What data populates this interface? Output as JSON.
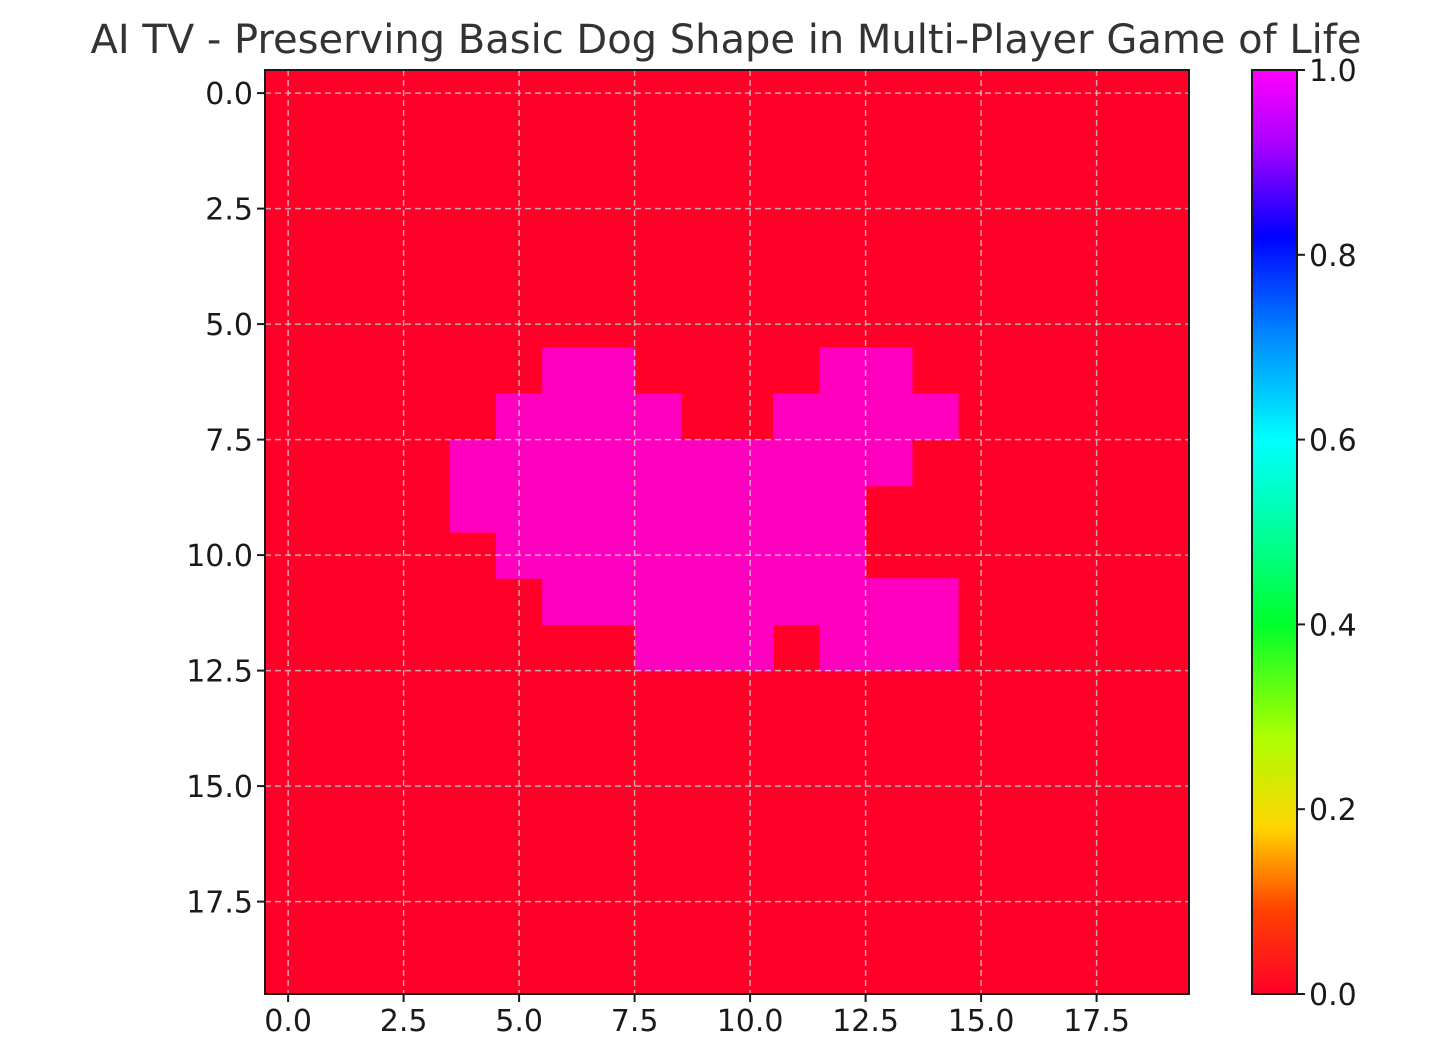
{
  "chart_data": {
    "type": "heatmap",
    "title": "AI TV - Preserving Basic Dog Shape in Multi-Player Game of Life",
    "xlabel": "",
    "ylabel": "",
    "grid_size": [
      20,
      20
    ],
    "xlim": [
      -0.5,
      19.5
    ],
    "ylim": [
      19.5,
      -0.5
    ],
    "x_ticks": [
      "0.0",
      "2.5",
      "5.0",
      "7.5",
      "10.0",
      "12.5",
      "15.0",
      "17.5"
    ],
    "y_ticks": [
      "0.0",
      "2.5",
      "5.0",
      "7.5",
      "10.0",
      "12.5",
      "15.0",
      "17.5"
    ],
    "grid": true,
    "colormap": "gist_rainbow",
    "colorbar": {
      "min": 0.0,
      "max": 1.0,
      "ticks": [
        "0.0",
        "0.2",
        "0.4",
        "0.6",
        "0.8",
        "1.0"
      ]
    },
    "background_value": 0,
    "cells_value_1": [
      [
        6,
        6
      ],
      [
        6,
        7
      ],
      [
        7,
        5
      ],
      [
        7,
        6
      ],
      [
        7,
        7
      ],
      [
        7,
        8
      ],
      [
        8,
        4
      ],
      [
        8,
        5
      ],
      [
        8,
        6
      ],
      [
        8,
        7
      ],
      [
        8,
        8
      ],
      [
        8,
        9
      ],
      [
        8,
        10
      ],
      [
        8,
        11
      ],
      [
        8,
        12
      ],
      [
        8,
        13
      ],
      [
        9,
        4
      ],
      [
        9,
        5
      ],
      [
        9,
        6
      ],
      [
        9,
        7
      ],
      [
        9,
        8
      ],
      [
        9,
        9
      ],
      [
        9,
        10
      ],
      [
        9,
        11
      ],
      [
        9,
        12
      ],
      [
        10,
        5
      ],
      [
        10,
        6
      ],
      [
        10,
        7
      ],
      [
        10,
        8
      ],
      [
        10,
        9
      ],
      [
        10,
        10
      ],
      [
        10,
        11
      ],
      [
        10,
        12
      ],
      [
        11,
        6
      ],
      [
        11,
        7
      ],
      [
        11,
        8
      ],
      [
        11,
        9
      ],
      [
        11,
        10
      ],
      [
        11,
        11
      ],
      [
        11,
        12
      ],
      [
        11,
        13
      ],
      [
        11,
        14
      ],
      [
        12,
        8
      ],
      [
        12,
        9
      ],
      [
        12,
        10
      ],
      [
        12,
        12
      ],
      [
        12,
        13
      ],
      [
        12,
        14
      ],
      [
        6,
        12
      ],
      [
        6,
        13
      ],
      [
        7,
        11
      ],
      [
        7,
        12
      ],
      [
        7,
        13
      ],
      [
        7,
        14
      ]
    ],
    "colors": {
      "value_0": "#ff0029",
      "value_1": "#ff00bf"
    }
  }
}
